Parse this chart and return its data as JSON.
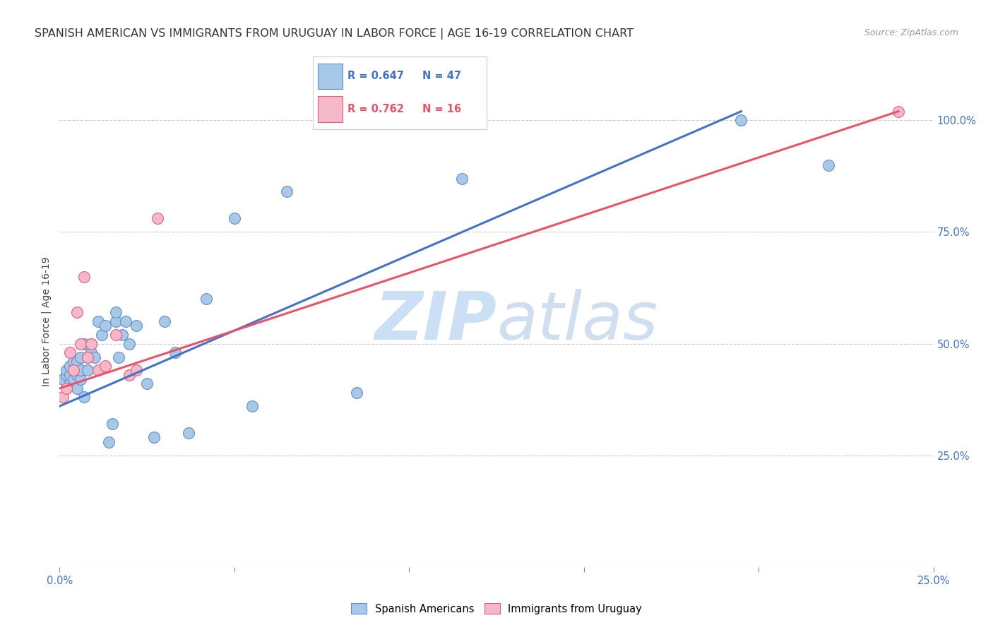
{
  "title": "SPANISH AMERICAN VS IMMIGRANTS FROM URUGUAY IN LABOR FORCE | AGE 16-19 CORRELATION CHART",
  "source": "Source: ZipAtlas.com",
  "ylabel": "In Labor Force | Age 16-19",
  "xlim": [
    0.0,
    0.25
  ],
  "ylim": [
    0.0,
    1.1
  ],
  "xticks": [
    0.0,
    0.05,
    0.1,
    0.15,
    0.2,
    0.25
  ],
  "xtick_labels": [
    "0.0%",
    "",
    "",
    "",
    "",
    "25.0%"
  ],
  "yticks": [
    0.0,
    0.25,
    0.5,
    0.75,
    1.0
  ],
  "ytick_labels_right": [
    "",
    "25.0%",
    "50.0%",
    "75.0%",
    "100.0%"
  ],
  "blue_color": "#a8c8e8",
  "pink_color": "#f4b8c8",
  "blue_edge_color": "#6090c8",
  "pink_edge_color": "#e06080",
  "blue_line_color": "#4472c4",
  "pink_line_color": "#e8536a",
  "legend_blue_R": "0.647",
  "legend_blue_N": "47",
  "legend_pink_R": "0.762",
  "legend_pink_N": "16",
  "watermark_zip": "ZIP",
  "watermark_atlas": "atlas",
  "watermark_color": "#cce0f5",
  "blue_scatter_x": [
    0.001,
    0.002,
    0.002,
    0.003,
    0.003,
    0.003,
    0.004,
    0.004,
    0.004,
    0.005,
    0.005,
    0.005,
    0.006,
    0.006,
    0.006,
    0.007,
    0.007,
    0.008,
    0.008,
    0.009,
    0.009,
    0.01,
    0.011,
    0.012,
    0.013,
    0.014,
    0.015,
    0.016,
    0.016,
    0.017,
    0.018,
    0.019,
    0.02,
    0.022,
    0.025,
    0.027,
    0.03,
    0.033,
    0.037,
    0.042,
    0.05,
    0.055,
    0.065,
    0.085,
    0.115,
    0.195,
    0.22
  ],
  "blue_scatter_y": [
    0.42,
    0.43,
    0.44,
    0.41,
    0.43,
    0.45,
    0.42,
    0.44,
    0.46,
    0.4,
    0.43,
    0.46,
    0.42,
    0.44,
    0.47,
    0.38,
    0.5,
    0.44,
    0.47,
    0.48,
    0.5,
    0.47,
    0.55,
    0.52,
    0.54,
    0.28,
    0.32,
    0.55,
    0.57,
    0.47,
    0.52,
    0.55,
    0.5,
    0.54,
    0.41,
    0.29,
    0.55,
    0.48,
    0.3,
    0.6,
    0.78,
    0.36,
    0.84,
    0.39,
    0.87,
    1.0,
    0.9
  ],
  "pink_scatter_x": [
    0.001,
    0.002,
    0.003,
    0.004,
    0.005,
    0.006,
    0.007,
    0.008,
    0.009,
    0.011,
    0.013,
    0.016,
    0.02,
    0.022,
    0.028,
    0.24
  ],
  "pink_scatter_y": [
    0.38,
    0.4,
    0.48,
    0.44,
    0.57,
    0.5,
    0.65,
    0.47,
    0.5,
    0.44,
    0.45,
    0.52,
    0.43,
    0.44,
    0.78,
    1.02
  ],
  "blue_line_x": [
    0.0,
    0.195
  ],
  "blue_line_y": [
    0.36,
    1.02
  ],
  "pink_line_x": [
    0.0,
    0.24
  ],
  "pink_line_y": [
    0.4,
    1.02
  ],
  "background_color": "#ffffff",
  "grid_color": "#cccccc",
  "title_fontsize": 11.5,
  "axis_label_fontsize": 10,
  "tick_fontsize": 10.5
}
